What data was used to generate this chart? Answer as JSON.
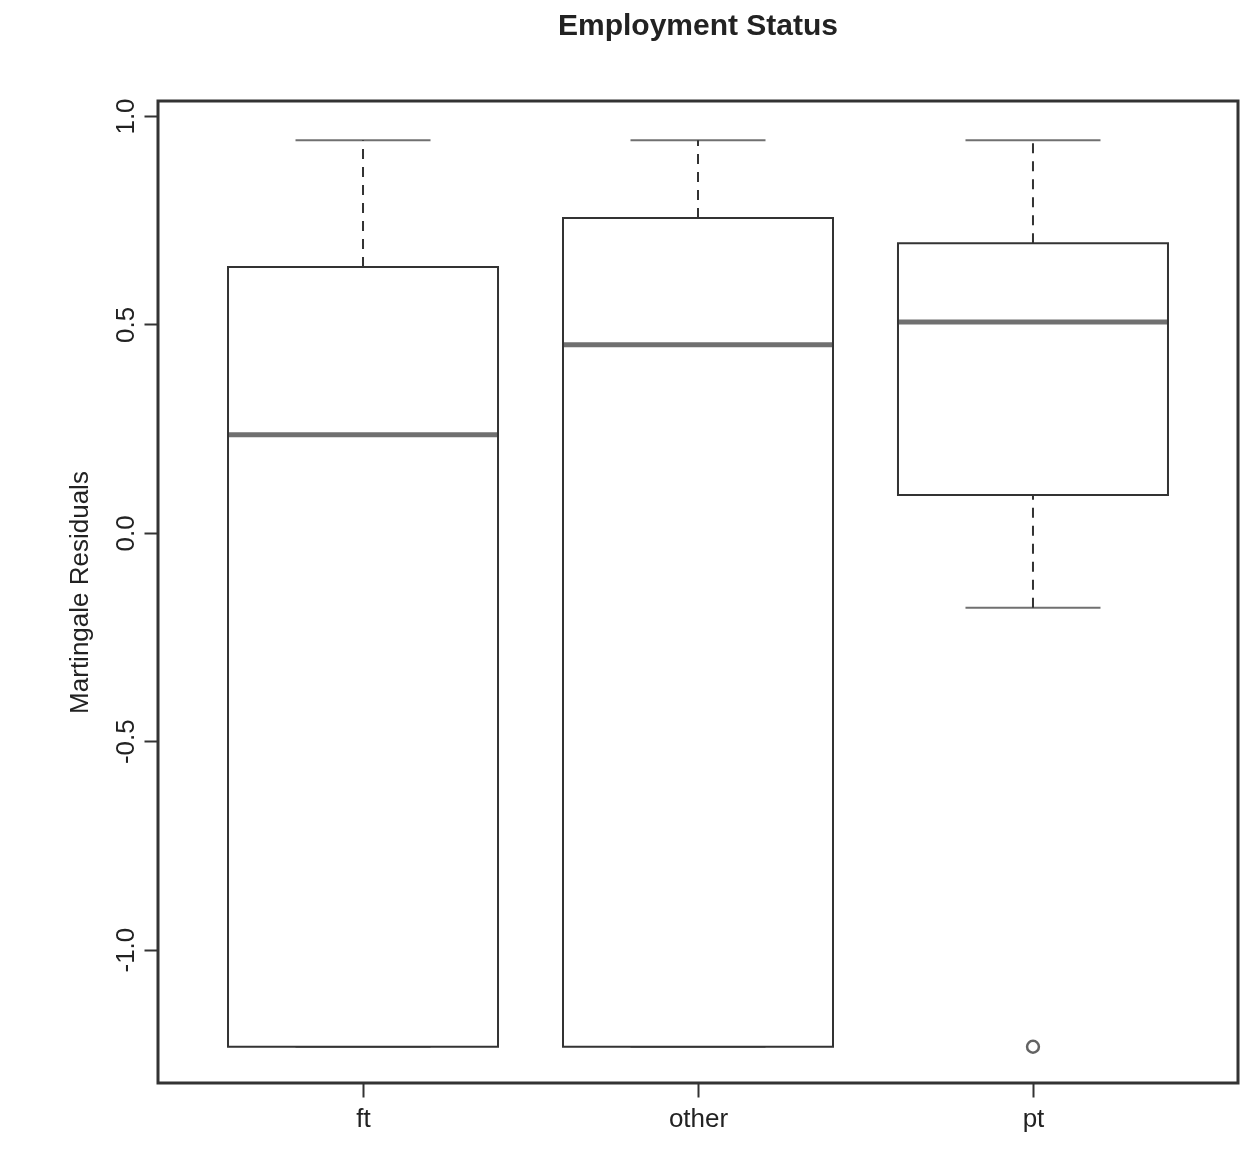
{
  "chart_data": {
    "type": "box",
    "title": "Employment Status",
    "ylabel": "Martingale Residuals",
    "categories": [
      "ft",
      "other",
      "pt"
    ],
    "boxes": [
      {
        "low": -1.233,
        "q1": -1.233,
        "median": 0.235,
        "q3": 0.638,
        "high": 0.942
      },
      {
        "low": -1.233,
        "q1": -1.233,
        "median": 0.451,
        "q3": 0.755,
        "high": 0.942
      },
      {
        "low": -0.18,
        "q1": 0.091,
        "median": 0.506,
        "q3": 0.695,
        "high": 0.942,
        "outliers": [
          -1.233
        ]
      }
    ],
    "ylim": [
      -1.32,
      1.036
    ],
    "yticks": [
      {
        "value": -1,
        "label": "-1.0"
      },
      {
        "value": -0.5,
        "label": "-0.5"
      },
      {
        "value": 0,
        "label": "0.0"
      },
      {
        "value": 0.5,
        "label": "0.5"
      },
      {
        "value": 1,
        "label": "1.0"
      }
    ]
  }
}
